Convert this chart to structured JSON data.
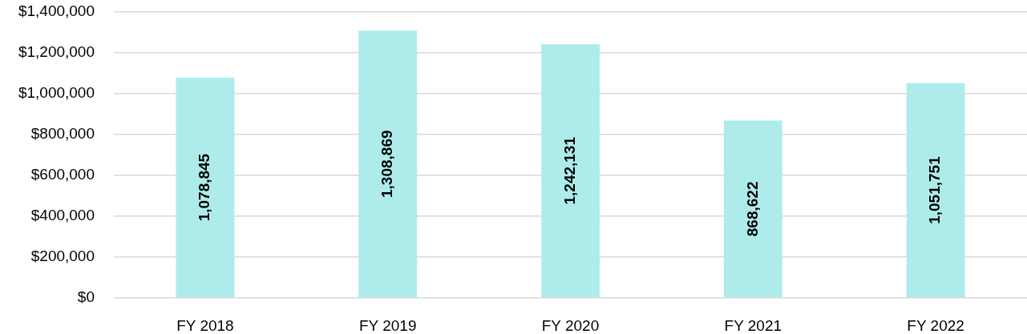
{
  "chart_data": {
    "type": "bar",
    "categories": [
      "FY 2018",
      "FY 2019",
      "FY 2020",
      "FY 2021",
      "FY 2022"
    ],
    "values": [
      1078845,
      1308869,
      1242131,
      868622,
      1051751
    ],
    "value_labels": [
      "1,078,845",
      "1,308,869",
      "1,242,131",
      "868,622",
      "1,051,751"
    ],
    "color": "#aeeceb",
    "ylim": [
      0,
      1400000
    ],
    "yticks": [
      {
        "value": 0,
        "label": "$0"
      },
      {
        "value": 200000,
        "label": "$200,000"
      },
      {
        "value": 400000,
        "label": "$400,000"
      },
      {
        "value": 600000,
        "label": "$600,000"
      },
      {
        "value": 800000,
        "label": "$800,000"
      },
      {
        "value": 1000000,
        "label": "$1,000,000"
      },
      {
        "value": 1200000,
        "label": "$1,200,000"
      },
      {
        "value": 1400000,
        "label": "$1,400,000"
      }
    ],
    "grid": "y"
  }
}
